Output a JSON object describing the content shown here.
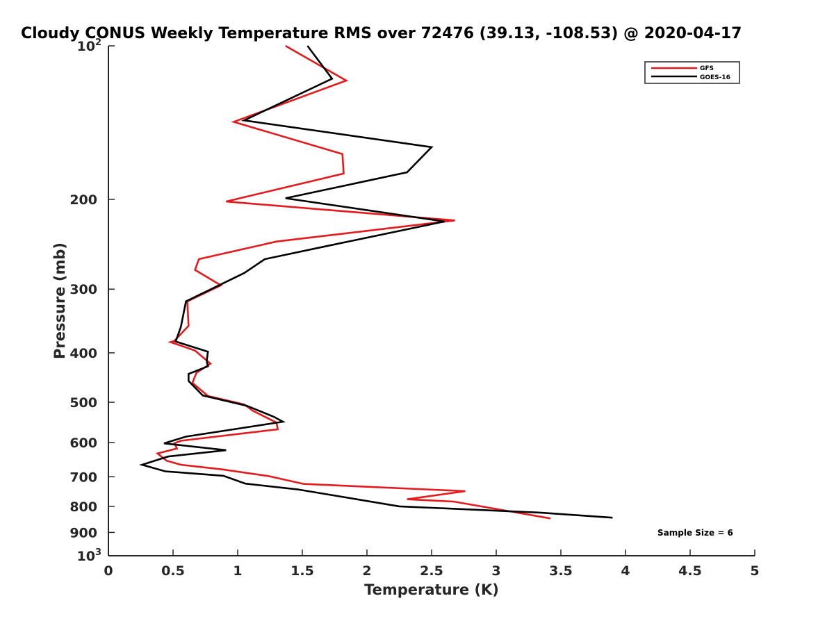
{
  "chart_data": {
    "type": "line",
    "title": "Cloudy CONUS Weekly Temperature RMS over 72476 (39.13, -108.53) @ 2020-04-17",
    "xlabel": "Temperature (K)",
    "ylabel": "Pressure (mb)",
    "xlim": [
      0,
      5
    ],
    "ylim": [
      100,
      1000
    ],
    "y_scale": "log",
    "y_reversed": true,
    "grid": false,
    "legend_position": "top-right",
    "x_ticks": [
      "0",
      "0.5",
      "1",
      "1.5",
      "2",
      "2.5",
      "3",
      "3.5",
      "4",
      "4.5",
      "5"
    ],
    "y_ticks": [
      {
        "value": 100,
        "base": "10",
        "exp": "2"
      },
      {
        "value": 200,
        "label": "200"
      },
      {
        "value": 300,
        "label": "300"
      },
      {
        "value": 400,
        "label": "400"
      },
      {
        "value": 500,
        "label": "500"
      },
      {
        "value": 600,
        "label": "600"
      },
      {
        "value": 700,
        "label": "700"
      },
      {
        "value": 800,
        "label": "800"
      },
      {
        "value": 900,
        "label": "900"
      },
      {
        "value": 1000,
        "base": "10",
        "exp": "3"
      }
    ],
    "annotation": "Sample Size = 6",
    "series": [
      {
        "name": "GFS",
        "color": "#e41a1c",
        "points": [
          [
            1.37,
            100
          ],
          [
            1.84,
            117
          ],
          [
            1.0,
            140
          ],
          [
            0.97,
            141
          ],
          [
            1.81,
            163
          ],
          [
            1.82,
            178
          ],
          [
            0.91,
            202
          ],
          [
            2.68,
            220
          ],
          [
            1.3,
            242
          ],
          [
            0.7,
            262
          ],
          [
            0.67,
            275
          ],
          [
            0.87,
            295
          ],
          [
            0.61,
            317
          ],
          [
            0.62,
            354
          ],
          [
            0.51,
            379
          ],
          [
            0.48,
            381
          ],
          [
            0.67,
            396
          ],
          [
            0.79,
            420
          ],
          [
            0.68,
            438
          ],
          [
            0.65,
            458
          ],
          [
            0.77,
            486
          ],
          [
            1.05,
            505
          ],
          [
            1.12,
            520
          ],
          [
            1.3,
            548
          ],
          [
            1.31,
            565
          ],
          [
            0.56,
            595
          ],
          [
            0.51,
            602
          ],
          [
            0.53,
            616
          ],
          [
            0.38,
            630
          ],
          [
            0.45,
            651
          ],
          [
            0.56,
            663
          ],
          [
            0.88,
            677
          ],
          [
            1.24,
            698
          ],
          [
            1.51,
            723
          ],
          [
            2.76,
            747
          ],
          [
            2.31,
            775
          ],
          [
            2.67,
            783
          ],
          [
            3.42,
            845
          ]
        ]
      },
      {
        "name": "GOES-16",
        "color": "#000000",
        "points": [
          [
            1.54,
            100
          ],
          [
            1.73,
            116
          ],
          [
            1.05,
            140
          ],
          [
            2.5,
            158
          ],
          [
            2.31,
            177
          ],
          [
            1.37,
            199
          ],
          [
            2.6,
            221
          ],
          [
            1.69,
            247
          ],
          [
            1.21,
            262
          ],
          [
            1.05,
            279
          ],
          [
            0.6,
            317
          ],
          [
            0.56,
            356
          ],
          [
            0.52,
            380
          ],
          [
            0.77,
            398
          ],
          [
            0.76,
            415
          ],
          [
            0.77,
            425
          ],
          [
            0.62,
            440
          ],
          [
            0.62,
            454
          ],
          [
            0.73,
            485
          ],
          [
            1.07,
            508
          ],
          [
            1.28,
            534
          ],
          [
            1.35,
            546
          ],
          [
            0.6,
            584
          ],
          [
            0.43,
            602
          ],
          [
            0.91,
            621
          ],
          [
            0.46,
            639
          ],
          [
            0.26,
            663
          ],
          [
            0.44,
            683
          ],
          [
            0.89,
            697
          ],
          [
            1.06,
            722
          ],
          [
            1.46,
            741
          ],
          [
            2.25,
            800
          ],
          [
            3.34,
            823
          ],
          [
            3.9,
            842
          ]
        ]
      }
    ]
  }
}
